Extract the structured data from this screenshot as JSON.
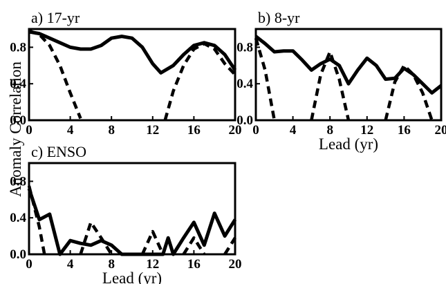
{
  "figure": {
    "ylabel": "Anomaly Correlation",
    "xlabel": "Lead (yr)"
  },
  "chart_data": [
    {
      "type": "line",
      "title": "a) 17-yr",
      "xlabel": "",
      "ylabel": "Anomaly Correlation",
      "xlim": [
        0,
        20
      ],
      "ylim": [
        0,
        1.0
      ],
      "xticks": [
        "0",
        "4",
        "8",
        "12",
        "16",
        "20"
      ],
      "yticks": [
        "0.0",
        "0.4",
        "0.8"
      ],
      "grid": false,
      "series": [
        {
          "style": "solid",
          "points": [
            [
              0,
              0.97
            ],
            [
              1,
              0.95
            ],
            [
              2,
              0.9
            ],
            [
              3,
              0.85
            ],
            [
              4,
              0.8
            ],
            [
              5,
              0.78
            ],
            [
              6,
              0.78
            ],
            [
              7,
              0.82
            ],
            [
              8,
              0.9
            ],
            [
              9,
              0.92
            ],
            [
              10,
              0.9
            ],
            [
              11,
              0.8
            ],
            [
              12,
              0.62
            ],
            [
              12.8,
              0.52
            ],
            [
              14,
              0.6
            ],
            [
              15,
              0.72
            ],
            [
              16,
              0.82
            ],
            [
              17,
              0.85
            ],
            [
              18,
              0.82
            ],
            [
              19,
              0.72
            ],
            [
              20,
              0.55
            ]
          ]
        },
        {
          "style": "dashed",
          "points": [
            [
              0,
              0.98
            ],
            [
              1,
              0.94
            ],
            [
              2,
              0.82
            ],
            [
              3,
              0.6
            ],
            [
              4,
              0.3
            ],
            [
              5,
              0.02
            ]
          ]
        },
        {
          "style": "dashed",
          "points": [
            [
              13.2,
              0.0
            ],
            [
              14,
              0.32
            ],
            [
              15,
              0.6
            ],
            [
              16,
              0.78
            ],
            [
              17,
              0.84
            ],
            [
              18,
              0.78
            ],
            [
              19,
              0.62
            ],
            [
              20,
              0.5
            ]
          ]
        }
      ]
    },
    {
      "type": "line",
      "title": "b) 8-yr",
      "xlabel": "Lead (yr)",
      "ylabel": "",
      "xlim": [
        0,
        20
      ],
      "ylim": [
        0,
        1.0
      ],
      "xticks": [
        "0",
        "4",
        "8",
        "12",
        "16",
        "20"
      ],
      "yticks": [
        "0.0",
        "0.4",
        "0.8"
      ],
      "grid": false,
      "series": [
        {
          "style": "solid",
          "points": [
            [
              0,
              0.92
            ],
            [
              1,
              0.84
            ],
            [
              2,
              0.75
            ],
            [
              3,
              0.76
            ],
            [
              4,
              0.76
            ],
            [
              5,
              0.66
            ],
            [
              6,
              0.55
            ],
            [
              7,
              0.62
            ],
            [
              8,
              0.67
            ],
            [
              9,
              0.6
            ],
            [
              10,
              0.4
            ],
            [
              11,
              0.55
            ],
            [
              12,
              0.68
            ],
            [
              13,
              0.6
            ],
            [
              14,
              0.45
            ],
            [
              15,
              0.46
            ],
            [
              16,
              0.57
            ],
            [
              17,
              0.5
            ],
            [
              18,
              0.4
            ],
            [
              19,
              0.3
            ],
            [
              20,
              0.38
            ]
          ]
        },
        {
          "style": "dashed",
          "points": [
            [
              0,
              0.9
            ],
            [
              1,
              0.55
            ],
            [
              2,
              0.0
            ]
          ]
        },
        {
          "style": "dashed",
          "points": [
            [
              6,
              0.0
            ],
            [
              7,
              0.5
            ],
            [
              8,
              0.75
            ],
            [
              9,
              0.45
            ],
            [
              10,
              0.0
            ]
          ]
        },
        {
          "style": "dashed",
          "points": [
            [
              14,
              0.0
            ],
            [
              15,
              0.42
            ],
            [
              16,
              0.6
            ],
            [
              17,
              0.5
            ],
            [
              18,
              0.3
            ],
            [
              19,
              0.0
            ]
          ]
        }
      ]
    },
    {
      "type": "line",
      "title": "c) ENSO",
      "xlabel": "Lead (yr)",
      "ylabel": "",
      "xlim": [
        0,
        20
      ],
      "ylim": [
        0,
        1.0
      ],
      "xticks": [
        "0",
        "4",
        "8",
        "12",
        "16",
        "20"
      ],
      "yticks": [
        "0.0",
        "0.4",
        "0.8"
      ],
      "grid": false,
      "series": [
        {
          "style": "solid",
          "points": [
            [
              0,
              0.72
            ],
            [
              1,
              0.38
            ],
            [
              2,
              0.44
            ],
            [
              3,
              0.0
            ],
            [
              4,
              0.15
            ],
            [
              5,
              0.12
            ],
            [
              6,
              0.1
            ],
            [
              7,
              0.15
            ],
            [
              8,
              0.1
            ],
            [
              9,
              0.0
            ],
            [
              13,
              0.0
            ],
            [
              13.5,
              0.18
            ],
            [
              14,
              0.0
            ],
            [
              15,
              0.18
            ],
            [
              16,
              0.35
            ],
            [
              17,
              0.1
            ],
            [
              18,
              0.45
            ],
            [
              19,
              0.2
            ],
            [
              20,
              0.38
            ]
          ]
        },
        {
          "style": "dashed",
          "points": [
            [
              0,
              0.75
            ],
            [
              1,
              0.3
            ],
            [
              1.5,
              0.0
            ]
          ]
        },
        {
          "style": "dashed",
          "points": [
            [
              5,
              0.0
            ],
            [
              6,
              0.35
            ],
            [
              7,
              0.18
            ],
            [
              8,
              0.0
            ]
          ]
        },
        {
          "style": "dashed",
          "points": [
            [
              11,
              0.0
            ],
            [
              12,
              0.25
            ],
            [
              13,
              0.0
            ]
          ]
        },
        {
          "style": "dashed",
          "points": [
            [
              15,
              0.0
            ],
            [
              16,
              0.18
            ],
            [
              17,
              0.0
            ]
          ]
        },
        {
          "style": "dashed",
          "points": [
            [
              19,
              0.0
            ],
            [
              20,
              0.18
            ]
          ]
        }
      ]
    }
  ]
}
